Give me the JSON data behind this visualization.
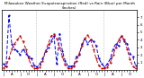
{
  "title": "Milwaukee Weather Evapotranspiration (Red) vs Rain (Blue) per Month (Inches)",
  "background_color": "#ffffff",
  "rain": [
    0.8,
    0.5,
    7.2,
    3.5,
    2.8,
    2.5,
    2.0,
    2.8,
    2.2,
    1.8,
    1.5,
    0.6,
    0.4,
    0.8,
    1.5,
    2.5,
    3.0,
    3.8,
    4.5,
    0.8,
    4.8,
    2.5,
    1.2,
    0.5,
    0.5,
    0.6,
    1.8,
    2.0,
    3.5,
    4.2,
    3.5,
    4.0,
    3.8,
    3.2,
    1.5,
    0.8,
    0.4,
    0.8,
    1.5,
    2.8,
    3.5,
    3.2,
    4.5,
    3.8,
    3.5,
    2.2,
    1.8,
    0.6
  ],
  "et": [
    0.3,
    0.5,
    1.5,
    2.8,
    3.5,
    4.0,
    4.5,
    3.8,
    2.8,
    1.5,
    0.6,
    0.2,
    0.2,
    0.4,
    1.2,
    2.5,
    3.5,
    4.5,
    4.8,
    4.2,
    3.0,
    1.8,
    0.7,
    0.2,
    0.2,
    0.5,
    1.2,
    2.2,
    3.2,
    4.2,
    4.6,
    4.0,
    2.8,
    1.5,
    0.6,
    0.2,
    0.2,
    0.4,
    1.0,
    2.0,
    3.0,
    4.0,
    4.5,
    4.0,
    2.8,
    1.4,
    0.5,
    0.2
  ],
  "ylim": [
    0,
    8
  ],
  "ytick_vals": [
    1,
    2,
    3,
    4,
    5,
    6,
    7
  ],
  "ytick_labels": [
    "1",
    "2",
    "3",
    "4",
    "5",
    "6",
    "7"
  ],
  "num_months": 48,
  "year_boundaries": [
    0,
    12,
    24,
    36,
    48
  ],
  "rain_color": "#0000ee",
  "et_color": "#cc0000",
  "grid_color": "#888888",
  "title_fontsize": 3.0,
  "tick_fontsize": 2.8
}
